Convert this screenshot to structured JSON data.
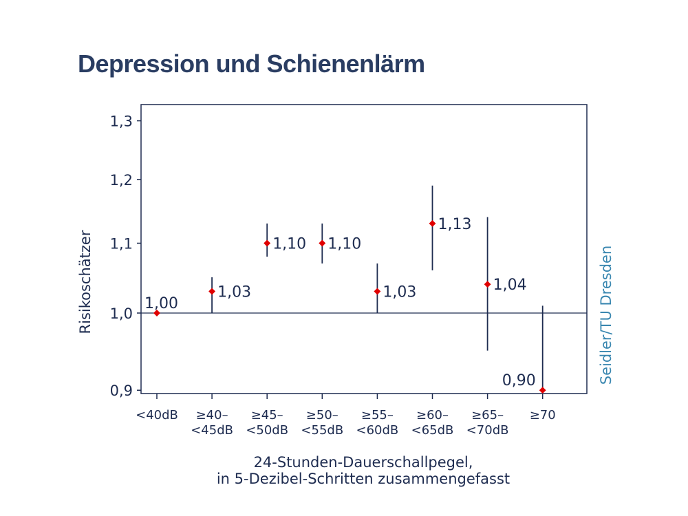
{
  "chart_data": {
    "type": "scatter",
    "title": "Depression und Schienenlärm",
    "ylabel": "Risikoschätzer",
    "xlabel_lines": [
      "24-Stunden-Dauerschallpegel,",
      "in 5-Dezibel-Schritten zusammengefasst"
    ],
    "source": "Seidler/TU Dresden",
    "y_scale": "log",
    "ylim": [
      0.9,
      1.3
    ],
    "yticks": [
      0.9,
      1.0,
      1.1,
      1.2,
      1.3
    ],
    "ytick_labels": [
      "0,9",
      "1,0",
      "1,1",
      "1,2",
      "1,3"
    ],
    "reference_line": 1.0,
    "categories": [
      [
        "<40dB"
      ],
      [
        "≥40–",
        "<45dB"
      ],
      [
        "≥45–",
        "<50dB"
      ],
      [
        "≥50–",
        "<55dB"
      ],
      [
        "≥55–",
        "<60dB"
      ],
      [
        "≥60–",
        "<65dB"
      ],
      [
        "≥65–",
        "<70dB"
      ],
      [
        "≥70"
      ]
    ],
    "values": [
      1.0,
      1.03,
      1.1,
      1.1,
      1.03,
      1.13,
      1.04,
      0.9
    ],
    "value_labels": [
      "1,00",
      "1,03",
      "1,10",
      "1,10",
      "1,03",
      "1,13",
      "1,04",
      "0,90"
    ],
    "ci_lower": [
      1.0,
      1.0,
      1.08,
      1.07,
      1.0,
      1.06,
      0.95,
      0.9
    ],
    "ci_upper": [
      1.0,
      1.05,
      1.13,
      1.13,
      1.07,
      1.19,
      1.14,
      1.01
    ],
    "colors": {
      "point": "#e00000",
      "line": "#1e2c50",
      "title": "#2a3d62",
      "source": "#3a87b0"
    }
  }
}
